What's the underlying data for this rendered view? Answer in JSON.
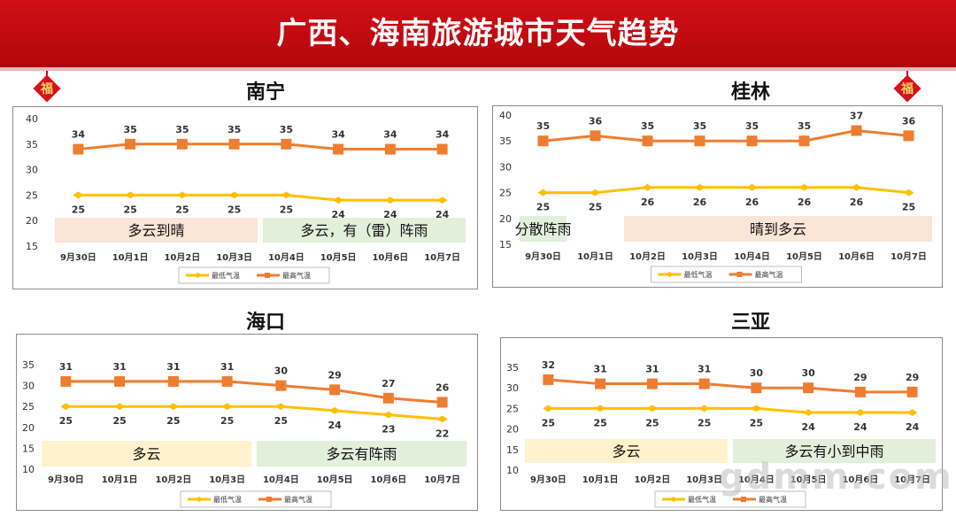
{
  "page": {
    "title": "广西、海南旅游城市天气趋势",
    "decoration_char": "福",
    "watermark": "gdmm.com"
  },
  "colors": {
    "banner": "#c8090f",
    "low_line": "#FFC000",
    "high_line": "#ED7D31",
    "band_orange": "#FBE5D6",
    "band_green": "#E2EFDA",
    "band_yellow": "#FFF2CC"
  },
  "chart_data": [
    {
      "type": "line",
      "city": "南宁",
      "categories": [
        "9月30日",
        "10月1日",
        "10月2日",
        "10月3日",
        "10月4日",
        "10月5日",
        "10月6日",
        "10月7日"
      ],
      "series": [
        {
          "name": "最低气温",
          "values": [
            25,
            25,
            25,
            25,
            25,
            24,
            24,
            24
          ]
        },
        {
          "name": "最高气温",
          "values": [
            34,
            35,
            35,
            35,
            35,
            34,
            34,
            34
          ]
        }
      ],
      "ylim": [
        15,
        40
      ],
      "yticks": [
        15,
        20,
        25,
        30,
        35,
        40
      ],
      "bands": [
        {
          "label": "多云到晴",
          "from": 0,
          "to": 3,
          "color": "#FBE5D6"
        },
        {
          "label": "多云，有（雷）阵雨",
          "from": 4,
          "to": 7,
          "color": "#E2EFDA"
        }
      ],
      "legend": "bottom"
    },
    {
      "type": "line",
      "city": "桂林",
      "categories": [
        "9月30日",
        "10月1日",
        "10月2日",
        "10月3日",
        "10月4日",
        "10月5日",
        "10月6日",
        "10月7日"
      ],
      "series": [
        {
          "name": "最低气温",
          "values": [
            25,
            25,
            26,
            26,
            26,
            26,
            26,
            25
          ]
        },
        {
          "name": "最高气温",
          "values": [
            35,
            36,
            35,
            35,
            35,
            35,
            37,
            36
          ]
        }
      ],
      "ylim": [
        15,
        40
      ],
      "yticks": [
        15,
        20,
        25,
        30,
        35,
        40
      ],
      "bands": [
        {
          "label": "分散阵雨",
          "from": 0,
          "to": 0,
          "color": "#E2EFDA"
        },
        {
          "label": "晴到多云",
          "from": 2,
          "to": 7,
          "color": "#FBE5D6"
        }
      ],
      "legend": "bottom"
    },
    {
      "type": "line",
      "city": "海口",
      "categories": [
        "9月30日",
        "10月1日",
        "10月2日",
        "10月3日",
        "10月4日",
        "10月5日",
        "10月6日",
        "10月7日"
      ],
      "series": [
        {
          "name": "最低气温",
          "values": [
            25,
            25,
            25,
            25,
            25,
            24,
            23,
            22
          ]
        },
        {
          "name": "最高气温",
          "values": [
            31,
            31,
            31,
            31,
            30,
            29,
            27,
            26
          ]
        }
      ],
      "ylim": [
        10,
        35
      ],
      "yticks": [
        10,
        15,
        20,
        25,
        30,
        35
      ],
      "bands": [
        {
          "label": "多云",
          "from": 0,
          "to": 3,
          "color": "#FFF2CC"
        },
        {
          "label": "多云有阵雨",
          "from": 4,
          "to": 7,
          "color": "#E2EFDA"
        }
      ],
      "legend": "bottom"
    },
    {
      "type": "line",
      "city": "三亚",
      "categories": [
        "9月30日",
        "10月1日",
        "10月2日",
        "10月3日",
        "10月4日",
        "10月5日",
        "10月6日",
        "10月7日"
      ],
      "series": [
        {
          "name": "最低气温",
          "values": [
            25,
            25,
            25,
            25,
            25,
            24,
            24,
            24
          ]
        },
        {
          "name": "最高气温",
          "values": [
            32,
            31,
            31,
            31,
            30,
            30,
            29,
            29
          ]
        }
      ],
      "ylim": [
        10,
        35
      ],
      "yticks": [
        10,
        15,
        20,
        25,
        30,
        35
      ],
      "bands": [
        {
          "label": "多云",
          "from": 0,
          "to": 3,
          "color": "#FFF2CC"
        },
        {
          "label": "多云有小到中雨",
          "from": 4,
          "to": 7,
          "color": "#E2EFDA"
        }
      ],
      "legend": "bottom"
    }
  ]
}
